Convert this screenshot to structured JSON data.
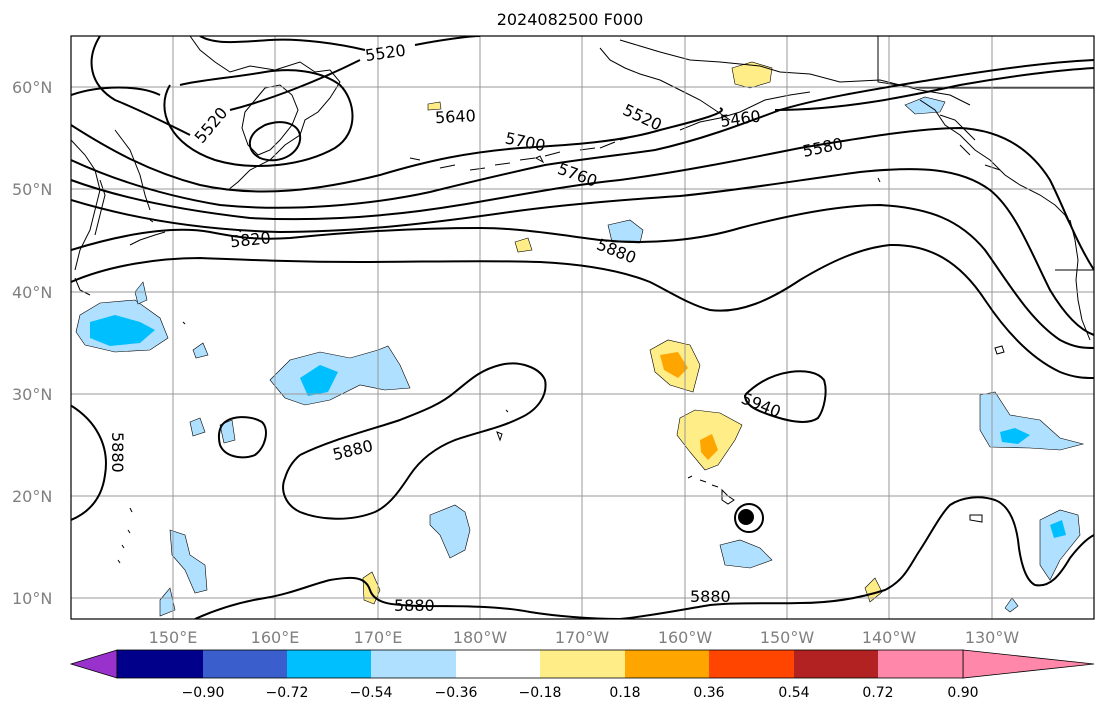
{
  "title": "2024082500 F000",
  "map": {
    "lat_labels": [
      "60°N",
      "50°N",
      "40°N",
      "30°N",
      "20°N",
      "10°N"
    ],
    "lon_labels": [
      "150°E",
      "160°E",
      "170°E",
      "180°W",
      "170°W",
      "160°W",
      "150°W",
      "140°W",
      "130°W"
    ],
    "contour_labels": [
      "5520",
      "5520",
      "5640",
      "5700",
      "5760",
      "5520",
      "5460",
      "5580",
      "5820",
      "5880",
      "5880",
      "5940",
      "5880",
      "5880",
      "5880"
    ],
    "contour_line_color": "#000000",
    "grid_color": "#999999"
  },
  "colorbar": {
    "tick_labels": [
      "−0.90",
      "−0.72",
      "−0.54",
      "−0.36",
      "−0.18",
      "0.18",
      "0.36",
      "0.54",
      "0.72",
      "0.90"
    ],
    "colors": [
      "#9932cc",
      "#00008b",
      "#3a5fcd",
      "#00bfff",
      "#b0e0ff",
      "#ffffff",
      "#ffee88",
      "#ffa500",
      "#ff4500",
      "#b22222",
      "#ff88aa"
    ]
  }
}
